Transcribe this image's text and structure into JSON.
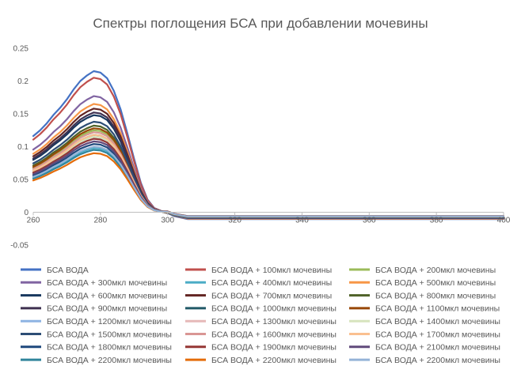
{
  "chart_data": {
    "type": "line",
    "title": "Спектры поглощения БСА при добавлении мочевины",
    "xlabel": "",
    "ylabel": "",
    "xlim": [
      260,
      400
    ],
    "ylim": [
      -0.05,
      0.25
    ],
    "xticks": [
      "260",
      "280",
      "300",
      "320",
      "340",
      "360",
      "380",
      "400"
    ],
    "yticks": [
      "-0.05",
      "0",
      "0.05",
      "0.1",
      "0.15",
      "0.2",
      "0.25"
    ],
    "grid": false,
    "legend_position": "bottom",
    "x": [
      260,
      262,
      264,
      266,
      268,
      270,
      272,
      274,
      276,
      278,
      280,
      282,
      284,
      286,
      288,
      290,
      292,
      294,
      296,
      298,
      300,
      302,
      304,
      306,
      308,
      310,
      320,
      340,
      360,
      380,
      400
    ],
    "shape": [
      0.54,
      0.58,
      0.63,
      0.69,
      0.74,
      0.8,
      0.87,
      0.93,
      0.97,
      1.0,
      0.99,
      0.95,
      0.86,
      0.73,
      0.56,
      0.38,
      0.21,
      0.09,
      0.03,
      0.01,
      0.0,
      -0.01,
      -0.015,
      -0.02,
      -0.02,
      -0.02,
      -0.02,
      -0.02,
      -0.02,
      -0.02,
      -0.02
    ],
    "series": [
      {
        "name": "БСА ВОДА",
        "color": "#4472c4",
        "peak": 0.215
      },
      {
        "name": "БСА ВОДА + 100мкл мочевины",
        "color": "#c0504d",
        "peak": 0.205
      },
      {
        "name": "БСА ВОДА + 200мкл мочевины",
        "color": "#9bbb59",
        "peak": 0.125
      },
      {
        "name": "БСА ВОДА + 300мкл мочевины",
        "color": "#8064a2",
        "peak": 0.177
      },
      {
        "name": "БСА ВОДА + 400мкл мочевины",
        "color": "#4bacc6",
        "peak": 0.098
      },
      {
        "name": "БСА ВОДА + 500мкл мочевины",
        "color": "#f79646",
        "peak": 0.165
      },
      {
        "name": "БСА ВОДА + 600мкл мочевины",
        "color": "#17375e",
        "peak": 0.148
      },
      {
        "name": "БСА ВОДА + 700мкл мочевины",
        "color": "#632523",
        "peak": 0.158
      },
      {
        "name": "БСА ВОДА + 800мкл мочевины",
        "color": "#4f6228",
        "peak": 0.132
      },
      {
        "name": "БСА ВОДА + 900мкл мочевины",
        "color": "#3f3151",
        "peak": 0.152
      },
      {
        "name": "БСА ВОДА + 1000мкл мочевины",
        "color": "#215967",
        "peak": 0.118
      },
      {
        "name": "БСА ВОДА + 1100мкл мочевины",
        "color": "#974706",
        "peak": 0.128
      },
      {
        "name": "БСА ВОДА + 1200мкл мочевины",
        "color": "#8eb4e3",
        "peak": 0.112
      },
      {
        "name": "БСА ВОДА + 1300мкл мочевины",
        "color": "#e6b9b8",
        "peak": 0.108
      },
      {
        "name": "БСА ВОДА + 1400мкл мочевины",
        "color": "#d7e4bd",
        "peak": 0.115
      },
      {
        "name": "БСА ВОДА + 1500мкл мочевины",
        "color": "#2c4d75",
        "peak": 0.138
      },
      {
        "name": "БСА ВОДА + 1600мкл мочевины",
        "color": "#d99694",
        "peak": 0.122
      },
      {
        "name": "БСА ВОДА + 1700мкл мочевины",
        "color": "#fac090",
        "peak": 0.118
      },
      {
        "name": "БСА ВОДА + 1800мкл мочевины",
        "color": "#1f497d",
        "peak": 0.104
      },
      {
        "name": "БСА ВОДА + 1900мкл мочевины",
        "color": "#953735",
        "peak": 0.112
      },
      {
        "name": "БСА ВОДА + 2100мкл мочевины",
        "color": "#604a7b",
        "peak": 0.108
      },
      {
        "name": "БСА ВОДА + 2200мкл мочевины",
        "color": "#31859c",
        "peak": 0.095
      },
      {
        "name": "БСА ВОДА + 2200мкл мочевины",
        "color": "#e46c0a",
        "peak": 0.09
      },
      {
        "name": "БСА ВОДА + 2200мкл мочевины",
        "color": "#95b3d7",
        "peak": 0.1
      }
    ]
  }
}
